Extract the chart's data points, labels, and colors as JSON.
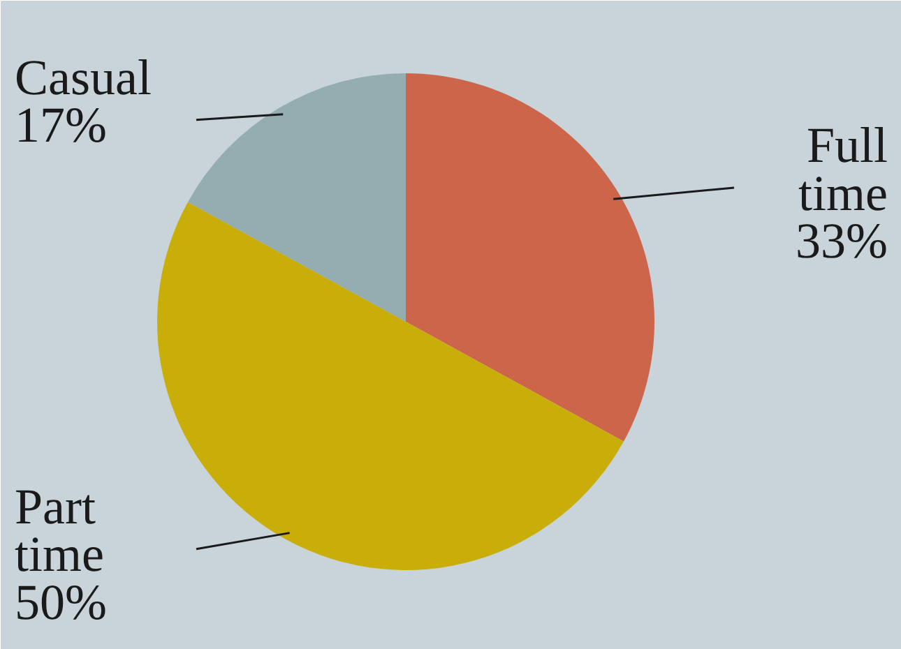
{
  "chart_data": {
    "type": "pie",
    "categories": [
      "Full time",
      "Part time",
      "Casual"
    ],
    "values": [
      33,
      50,
      17
    ],
    "colors": [
      "#cc6549",
      "#c9ae0a",
      "#93adb0"
    ],
    "value_labels": [
      "33%",
      "50%",
      "17%"
    ]
  }
}
